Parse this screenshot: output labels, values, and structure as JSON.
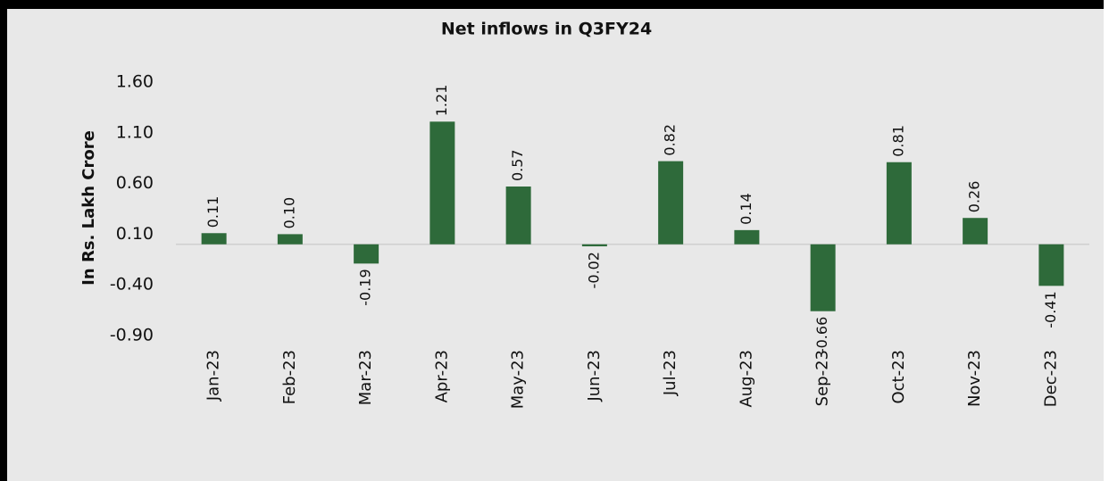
{
  "chart_data": {
    "type": "bar",
    "title": "Net inflows in Q3FY24",
    "y_label": "In Rs. Lakh Crore",
    "categories": [
      "Jan-23",
      "Feb-23",
      "Mar-23",
      "Apr-23",
      "May-23",
      "Jun-23",
      "Jul-23",
      "Aug-23",
      "Sep-23",
      "Oct-23",
      "Nov-23",
      "Dec-23"
    ],
    "values": [
      0.11,
      0.1,
      -0.19,
      1.21,
      0.57,
      -0.02,
      0.82,
      0.14,
      -0.66,
      0.81,
      0.26,
      -0.41
    ],
    "value_labels": [
      "0.11",
      "0.10",
      "-0.19",
      "1.21",
      "0.57",
      "-0.02",
      "0.82",
      "0.14",
      "-0.66",
      "0.81",
      "0.26",
      "-0.41"
    ],
    "color": "#2e6a3a",
    "ylim": [
      -0.9,
      1.6
    ],
    "yticks": [
      {
        "value": 1.6,
        "label": "1.60"
      },
      {
        "value": 1.1,
        "label": "1.10"
      },
      {
        "value": 0.6,
        "label": "0.60"
      },
      {
        "value": 0.1,
        "label": "0.10"
      },
      {
        "value": -0.4,
        "label": "-0.40"
      },
      {
        "value": -0.9,
        "label": "-0.90"
      }
    ],
    "grid": false
  }
}
